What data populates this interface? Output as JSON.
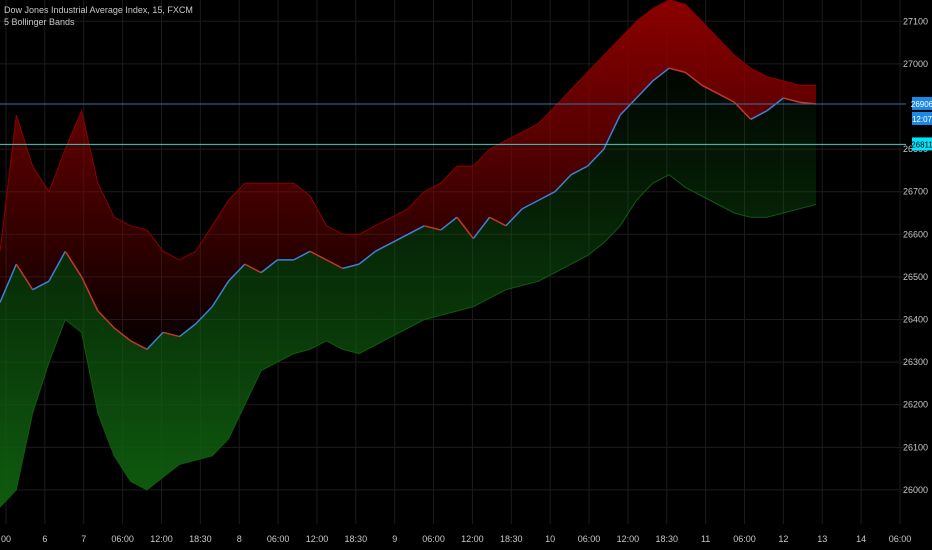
{
  "header": {
    "symbol_line": "Dow Jones Industrial Average Index, 15, FXCM",
    "indicator_line": "5 Bollinger Bands"
  },
  "colors": {
    "background": "#000000",
    "grid": "#1c1c1c",
    "axis_text": "#c8c8c8",
    "upper_band": "#8b0000",
    "lower_band": "#0f5c0f",
    "price_up": "#3b82d6",
    "price_down": "#c0392b",
    "hline_blue": "#3b6fa6",
    "hline_cyan": "#2fd6c8",
    "badge_price": "#1e88e5",
    "badge_level": "#00e5ff",
    "signal_sell": "#ff2a2a",
    "signal_buy": "#22cc22"
  },
  "chart_data": {
    "type": "line",
    "title": "Dow Jones Industrial Average Index, 15, FXCM",
    "indicator": "5 Bollinger Bands",
    "y_axis": {
      "ticks": [
        26000,
        26100,
        26200,
        26300,
        26400,
        26500,
        26600,
        26700,
        26800,
        27000,
        27100
      ],
      "range": [
        25920,
        27150
      ],
      "position": "right"
    },
    "x_axis": {
      "tick_labels": [
        "00",
        "6",
        "7",
        "06:00",
        "12:00",
        "18:30",
        "8",
        "06:00",
        "12:00",
        "18:30",
        "9",
        "06:00",
        "12:00",
        "18:30",
        "10",
        "06:00",
        "12:00",
        "18:30",
        "11",
        "06:00",
        "12",
        "13",
        "14",
        "06:00"
      ]
    },
    "x_range": [
      0,
      100
    ],
    "price_labels": {
      "current": "26906",
      "countdown": "12:07",
      "level": "26811"
    },
    "horizontal_lines": [
      26906,
      26811
    ],
    "series": [
      {
        "key": "close",
        "x": [
          0,
          2,
          4,
          6,
          8,
          10,
          12,
          14,
          16,
          18,
          20,
          22,
          24,
          26,
          28,
          30,
          32,
          34,
          36,
          38,
          40,
          42,
          44,
          46,
          48,
          50,
          52,
          54,
          56,
          58,
          60,
          62,
          64,
          66,
          68,
          70,
          72,
          74,
          76,
          78,
          80,
          82,
          84,
          86,
          88,
          90,
          92,
          94,
          96,
          98,
          100
        ],
        "values": [
          26440,
          26530,
          26470,
          26490,
          26560,
          26500,
          26420,
          26380,
          26350,
          26330,
          26370,
          26360,
          26390,
          26430,
          26490,
          26530,
          26510,
          26540,
          26540,
          26560,
          26540,
          26520,
          26530,
          26560,
          26580,
          26600,
          26620,
          26610,
          26640,
          26590,
          26640,
          26620,
          26660,
          26680,
          26700,
          26740,
          26760,
          26800,
          26880,
          26920,
          26960,
          26990,
          26980,
          26950,
          26930,
          26910,
          26870,
          26890,
          26920,
          26910,
          26906
        ]
      },
      {
        "key": "upper",
        "x": [
          0,
          2,
          4,
          6,
          8,
          10,
          12,
          14,
          16,
          18,
          20,
          22,
          24,
          26,
          28,
          30,
          32,
          34,
          36,
          38,
          40,
          42,
          44,
          46,
          48,
          50,
          52,
          54,
          56,
          58,
          60,
          62,
          64,
          66,
          68,
          70,
          72,
          74,
          76,
          78,
          80,
          82,
          84,
          86,
          88,
          90,
          92,
          94,
          96,
          98,
          100
        ],
        "values": [
          26560,
          26880,
          26760,
          26700,
          26800,
          26890,
          26720,
          26640,
          26620,
          26610,
          26560,
          26540,
          26560,
          26620,
          26680,
          26720,
          26720,
          26720,
          26720,
          26690,
          26620,
          26600,
          26600,
          26620,
          26640,
          26660,
          26700,
          26720,
          26760,
          26760,
          26800,
          26820,
          26840,
          26860,
          26900,
          26940,
          26980,
          27020,
          27060,
          27100,
          27130,
          27150,
          27140,
          27100,
          27060,
          27020,
          26990,
          26970,
          26960,
          26950,
          26950
        ]
      },
      {
        "key": "lower",
        "x": [
          0,
          2,
          4,
          6,
          8,
          10,
          12,
          14,
          16,
          18,
          20,
          22,
          24,
          26,
          28,
          30,
          32,
          34,
          36,
          38,
          40,
          42,
          44,
          46,
          48,
          50,
          52,
          54,
          56,
          58,
          60,
          62,
          64,
          66,
          68,
          70,
          72,
          74,
          76,
          78,
          80,
          82,
          84,
          86,
          88,
          90,
          92,
          94,
          96,
          98,
          100
        ],
        "values": [
          25960,
          26000,
          26180,
          26300,
          26400,
          26370,
          26180,
          26080,
          26020,
          26000,
          26030,
          26060,
          26070,
          26080,
          26120,
          26200,
          26280,
          26300,
          26320,
          26330,
          26350,
          26330,
          26320,
          26340,
          26360,
          26380,
          26400,
          26410,
          26420,
          26430,
          26450,
          26470,
          26480,
          26490,
          26510,
          26530,
          26550,
          26580,
          26620,
          26680,
          26720,
          26740,
          26710,
          26690,
          26670,
          26650,
          26640,
          26640,
          26650,
          26660,
          26670
        ]
      }
    ],
    "grid": true,
    "legend_position": "top-left"
  }
}
